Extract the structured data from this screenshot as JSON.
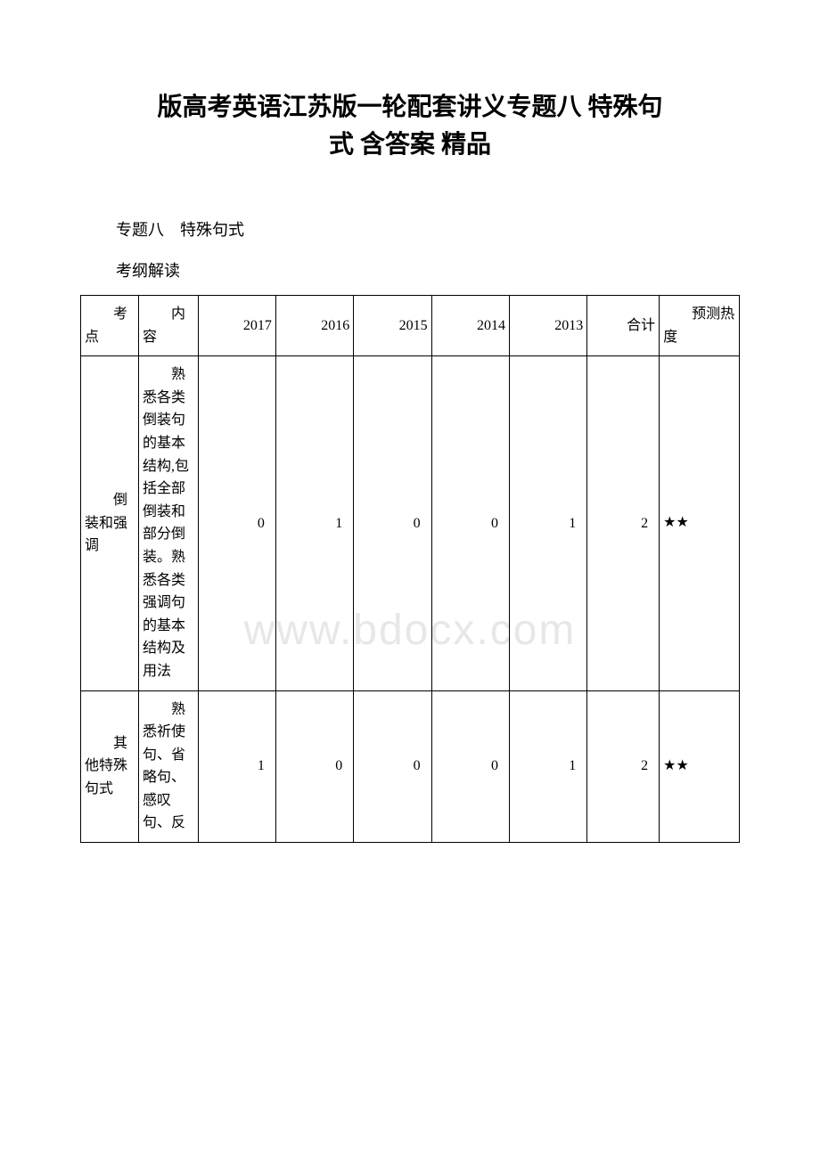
{
  "watermark_text": "www.bdocx.com",
  "watermark_color": "#d8d8d8",
  "title_line1": "版高考英语江苏版一轮配套讲义专题八 特殊句",
  "title_line2": "式 含答案 精品",
  "subtitle": "专题八　特殊句式",
  "section_label": "考纲解读",
  "table": {
    "headers": {
      "topic": "考点",
      "content": "内容",
      "y2017": "2017",
      "y2016": "2016",
      "y2015": "2015",
      "y2014": "2014",
      "y2013": "2013",
      "total": "合计",
      "heat": "预测热度"
    },
    "rows": [
      {
        "topic": "倒装和强调",
        "content": "熟悉各类倒装句的基本结构,包括全部倒装和部分倒装。熟悉各类强调句的基本结构及用法",
        "y2017": "0",
        "y2016": "1",
        "y2015": "0",
        "y2014": "0",
        "y2013": "1",
        "total": "2",
        "heat": "★★"
      },
      {
        "topic": "其他特殊句式",
        "content": "熟悉祈使句、省略句、感叹句、反",
        "y2017": "1",
        "y2016": "0",
        "y2015": "0",
        "y2014": "0",
        "y2013": "1",
        "total": "2",
        "heat": "★★"
      }
    ]
  },
  "colors": {
    "text": "#000000",
    "background": "#ffffff",
    "border": "#000000"
  }
}
